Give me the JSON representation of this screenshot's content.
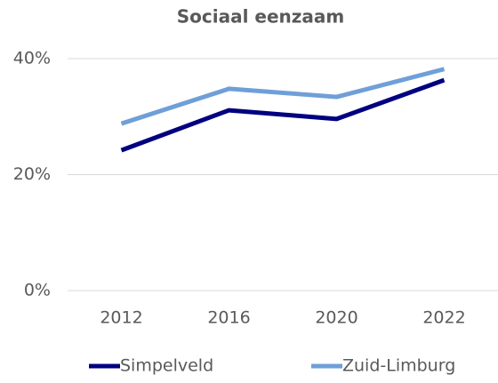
{
  "chart_data": {
    "type": "line",
    "title": "Sociaal eenzaam",
    "categories": [
      "2012",
      "2016",
      "2020",
      "2022"
    ],
    "series": [
      {
        "name": "Simpelveld",
        "color": "#000080",
        "values": [
          24.2,
          31.1,
          29.6,
          36.3
        ]
      },
      {
        "name": "Zuid-Limburg",
        "color": "#6f9fd8",
        "values": [
          28.8,
          34.8,
          33.4,
          38.2
        ]
      }
    ],
    "ylim": [
      0,
      40
    ],
    "yticks": [
      {
        "value": 0,
        "label": "0%"
      },
      {
        "value": 20,
        "label": "20%"
      },
      {
        "value": 40,
        "label": "40%"
      }
    ],
    "grid": true,
    "legend": "bottom"
  }
}
